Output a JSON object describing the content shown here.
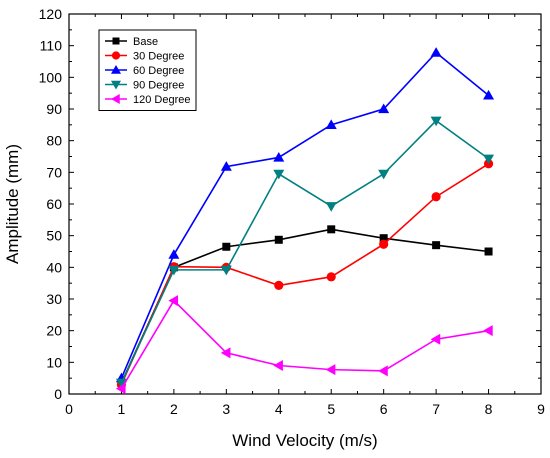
{
  "chart_data": {
    "type": "line",
    "title": "",
    "xlabel": "Wind Velocity (m/s)",
    "ylabel": "Amplitude (mm)",
    "xlim": [
      0,
      9
    ],
    "ylim": [
      0,
      120
    ],
    "xticks": [
      0,
      1,
      2,
      3,
      4,
      5,
      6,
      7,
      8,
      9
    ],
    "yticks": [
      0,
      10,
      20,
      30,
      40,
      50,
      60,
      70,
      80,
      90,
      100,
      110,
      120
    ],
    "grid": false,
    "legend_position": "top-left",
    "x": [
      1,
      2,
      3,
      4,
      5,
      6,
      7,
      8
    ],
    "series": [
      {
        "name": "Base",
        "color": "#000000",
        "marker": "square",
        "values": [
          3.5,
          40,
          46.5,
          48.7,
          52,
          49.2,
          47,
          45
        ]
      },
      {
        "name": "30 Degree",
        "color": "#ff0000",
        "marker": "circle",
        "values": [
          3,
          40.2,
          40,
          34.3,
          37,
          47.3,
          62.3,
          72.7
        ]
      },
      {
        "name": "60 Degree",
        "color": "#0000ff",
        "marker": "triangle-up",
        "values": [
          5,
          44,
          71.8,
          74.7,
          85,
          90,
          107.8,
          94.3
        ]
      },
      {
        "name": "90 Degree",
        "color": "#008080",
        "marker": "triangle-down",
        "values": [
          3.5,
          39.2,
          39.2,
          69.5,
          59.3,
          69.5,
          86.3,
          74.3
        ]
      },
      {
        "name": "120 Degree",
        "color": "#ff00ff",
        "marker": "triangle-left",
        "values": [
          1.7,
          29.5,
          13,
          9,
          7.7,
          7.3,
          17.3,
          20
        ]
      }
    ]
  }
}
